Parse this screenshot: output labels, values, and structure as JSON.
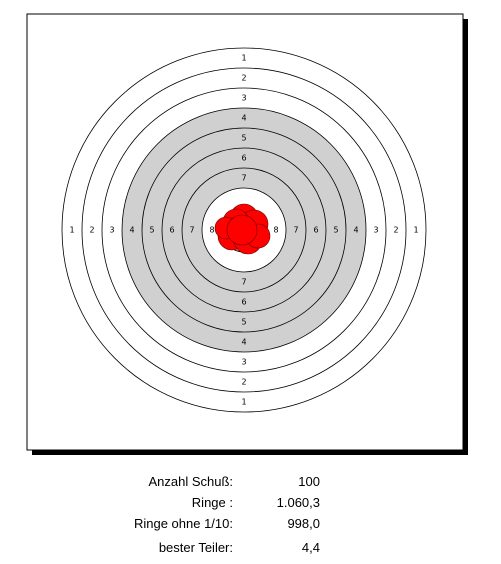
{
  "target": {
    "ring_labels": [
      "1",
      "2",
      "3",
      "4",
      "5",
      "6",
      "7",
      "8"
    ]
  },
  "stats": [
    {
      "label": "Anzahl Schuß:",
      "value": "100"
    },
    {
      "label": "Ringe :",
      "value": "1.060,3"
    },
    {
      "label": "Ringe ohne 1/10:",
      "value": "998,0"
    },
    {
      "label": "bester Teiler:",
      "value": "4,4"
    }
  ]
}
